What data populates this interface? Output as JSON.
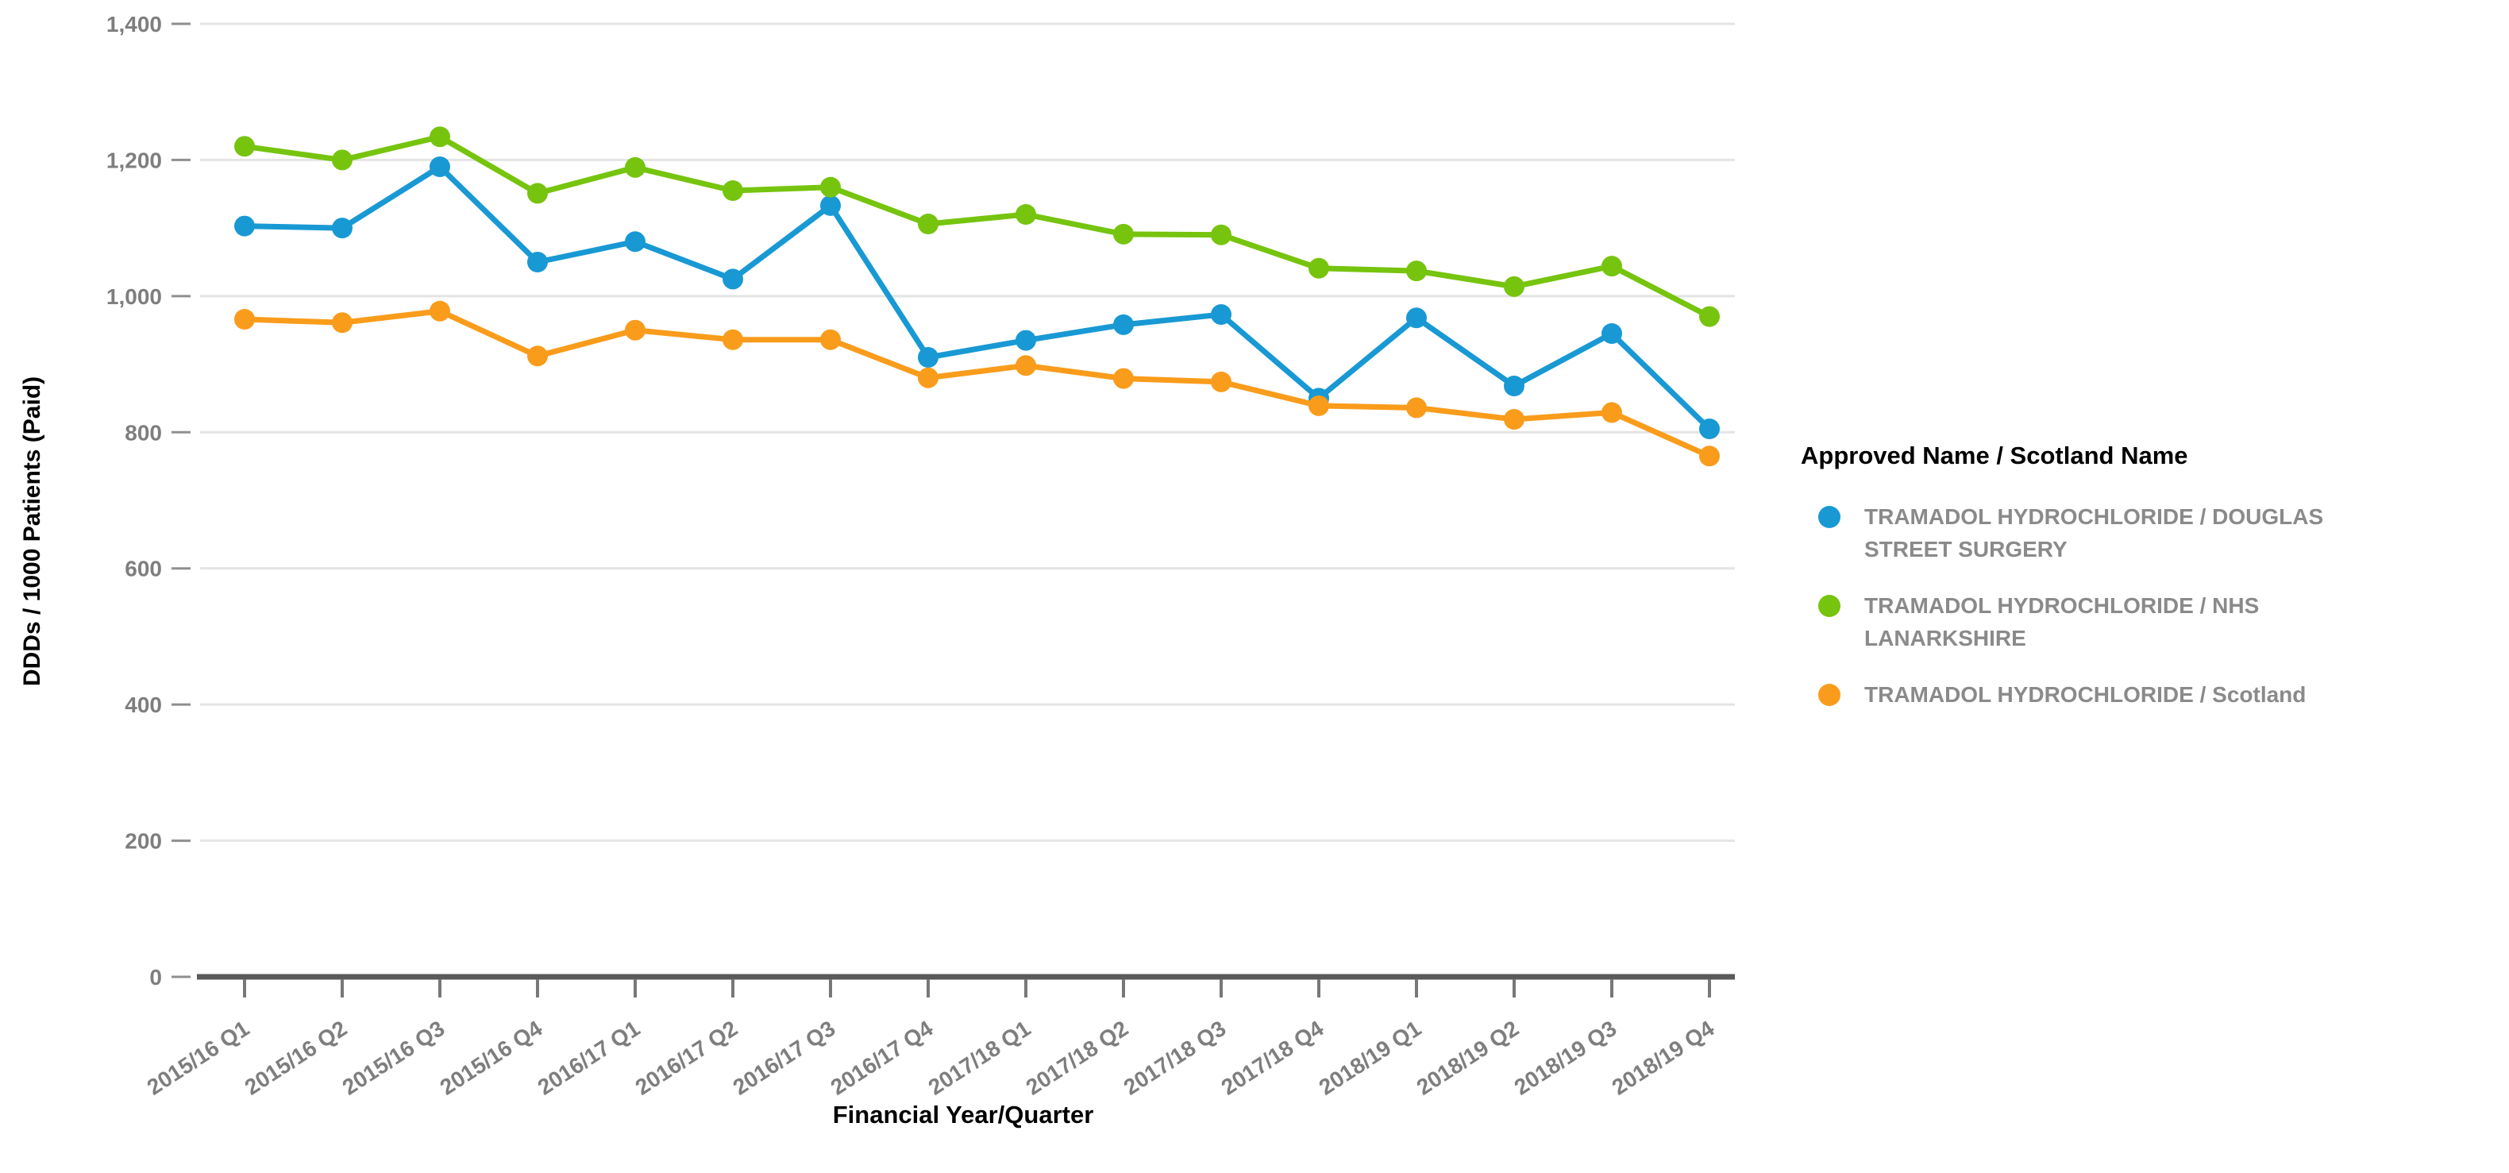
{
  "chart_data": {
    "type": "line",
    "title": "",
    "xlabel": "Financial Year/Quarter",
    "ylabel": "DDDs / 1000 Patients (Paid)",
    "legend_title": "Approved Name / Scotland Name",
    "legend_position": "right",
    "grid": true,
    "ylim": [
      0,
      1400
    ],
    "y_tick_step": 200,
    "y_ticks": [
      0,
      200,
      400,
      600,
      800,
      1000,
      1200,
      1400
    ],
    "y_tick_labels": [
      "0",
      "200",
      "400",
      "600",
      "800",
      "1,000",
      "1,200",
      "1,400"
    ],
    "categories": [
      "2015/16 Q1",
      "2015/16 Q2",
      "2015/16 Q3",
      "2015/16 Q4",
      "2016/17 Q1",
      "2016/17 Q2",
      "2016/17 Q3",
      "2016/17 Q4",
      "2017/18 Q1",
      "2017/18 Q2",
      "2017/18 Q3",
      "2017/18 Q4",
      "2018/19 Q1",
      "2018/19 Q2",
      "2018/19 Q3",
      "2018/19 Q4"
    ],
    "series": [
      {
        "name": "TRAMADOL HYDROCHLORIDE / DOUGLAS STREET SURGERY",
        "color": "#1899D4",
        "values": [
          1103,
          1100,
          1190,
          1050,
          1080,
          1025,
          1133,
          910,
          935,
          958,
          973,
          850,
          968,
          868,
          945,
          805
        ]
      },
      {
        "name": "TRAMADOL HYDROCHLORIDE / NHS LANARKSHIRE",
        "color": "#76C40E",
        "values": [
          1220,
          1200,
          1234,
          1151,
          1189,
          1155,
          1160,
          1106,
          1120,
          1091,
          1090,
          1041,
          1037,
          1014,
          1044,
          970
        ]
      },
      {
        "name": "TRAMADOL HYDROCHLORIDE / Scotland",
        "color": "#F99C1B",
        "values": [
          966,
          961,
          978,
          912,
          950,
          936,
          936,
          880,
          898,
          879,
          874,
          839,
          836,
          819,
          829,
          765
        ]
      }
    ]
  },
  "colors": {
    "background": "#ffffff",
    "grid_line": "#e4e4e4",
    "axis_line": "#5a5a5a",
    "tick_mark": "#8f8f8f",
    "tick_text": "#7e7e7e",
    "legend_text": "#8a8a8a",
    "title_text": "#000000"
  }
}
